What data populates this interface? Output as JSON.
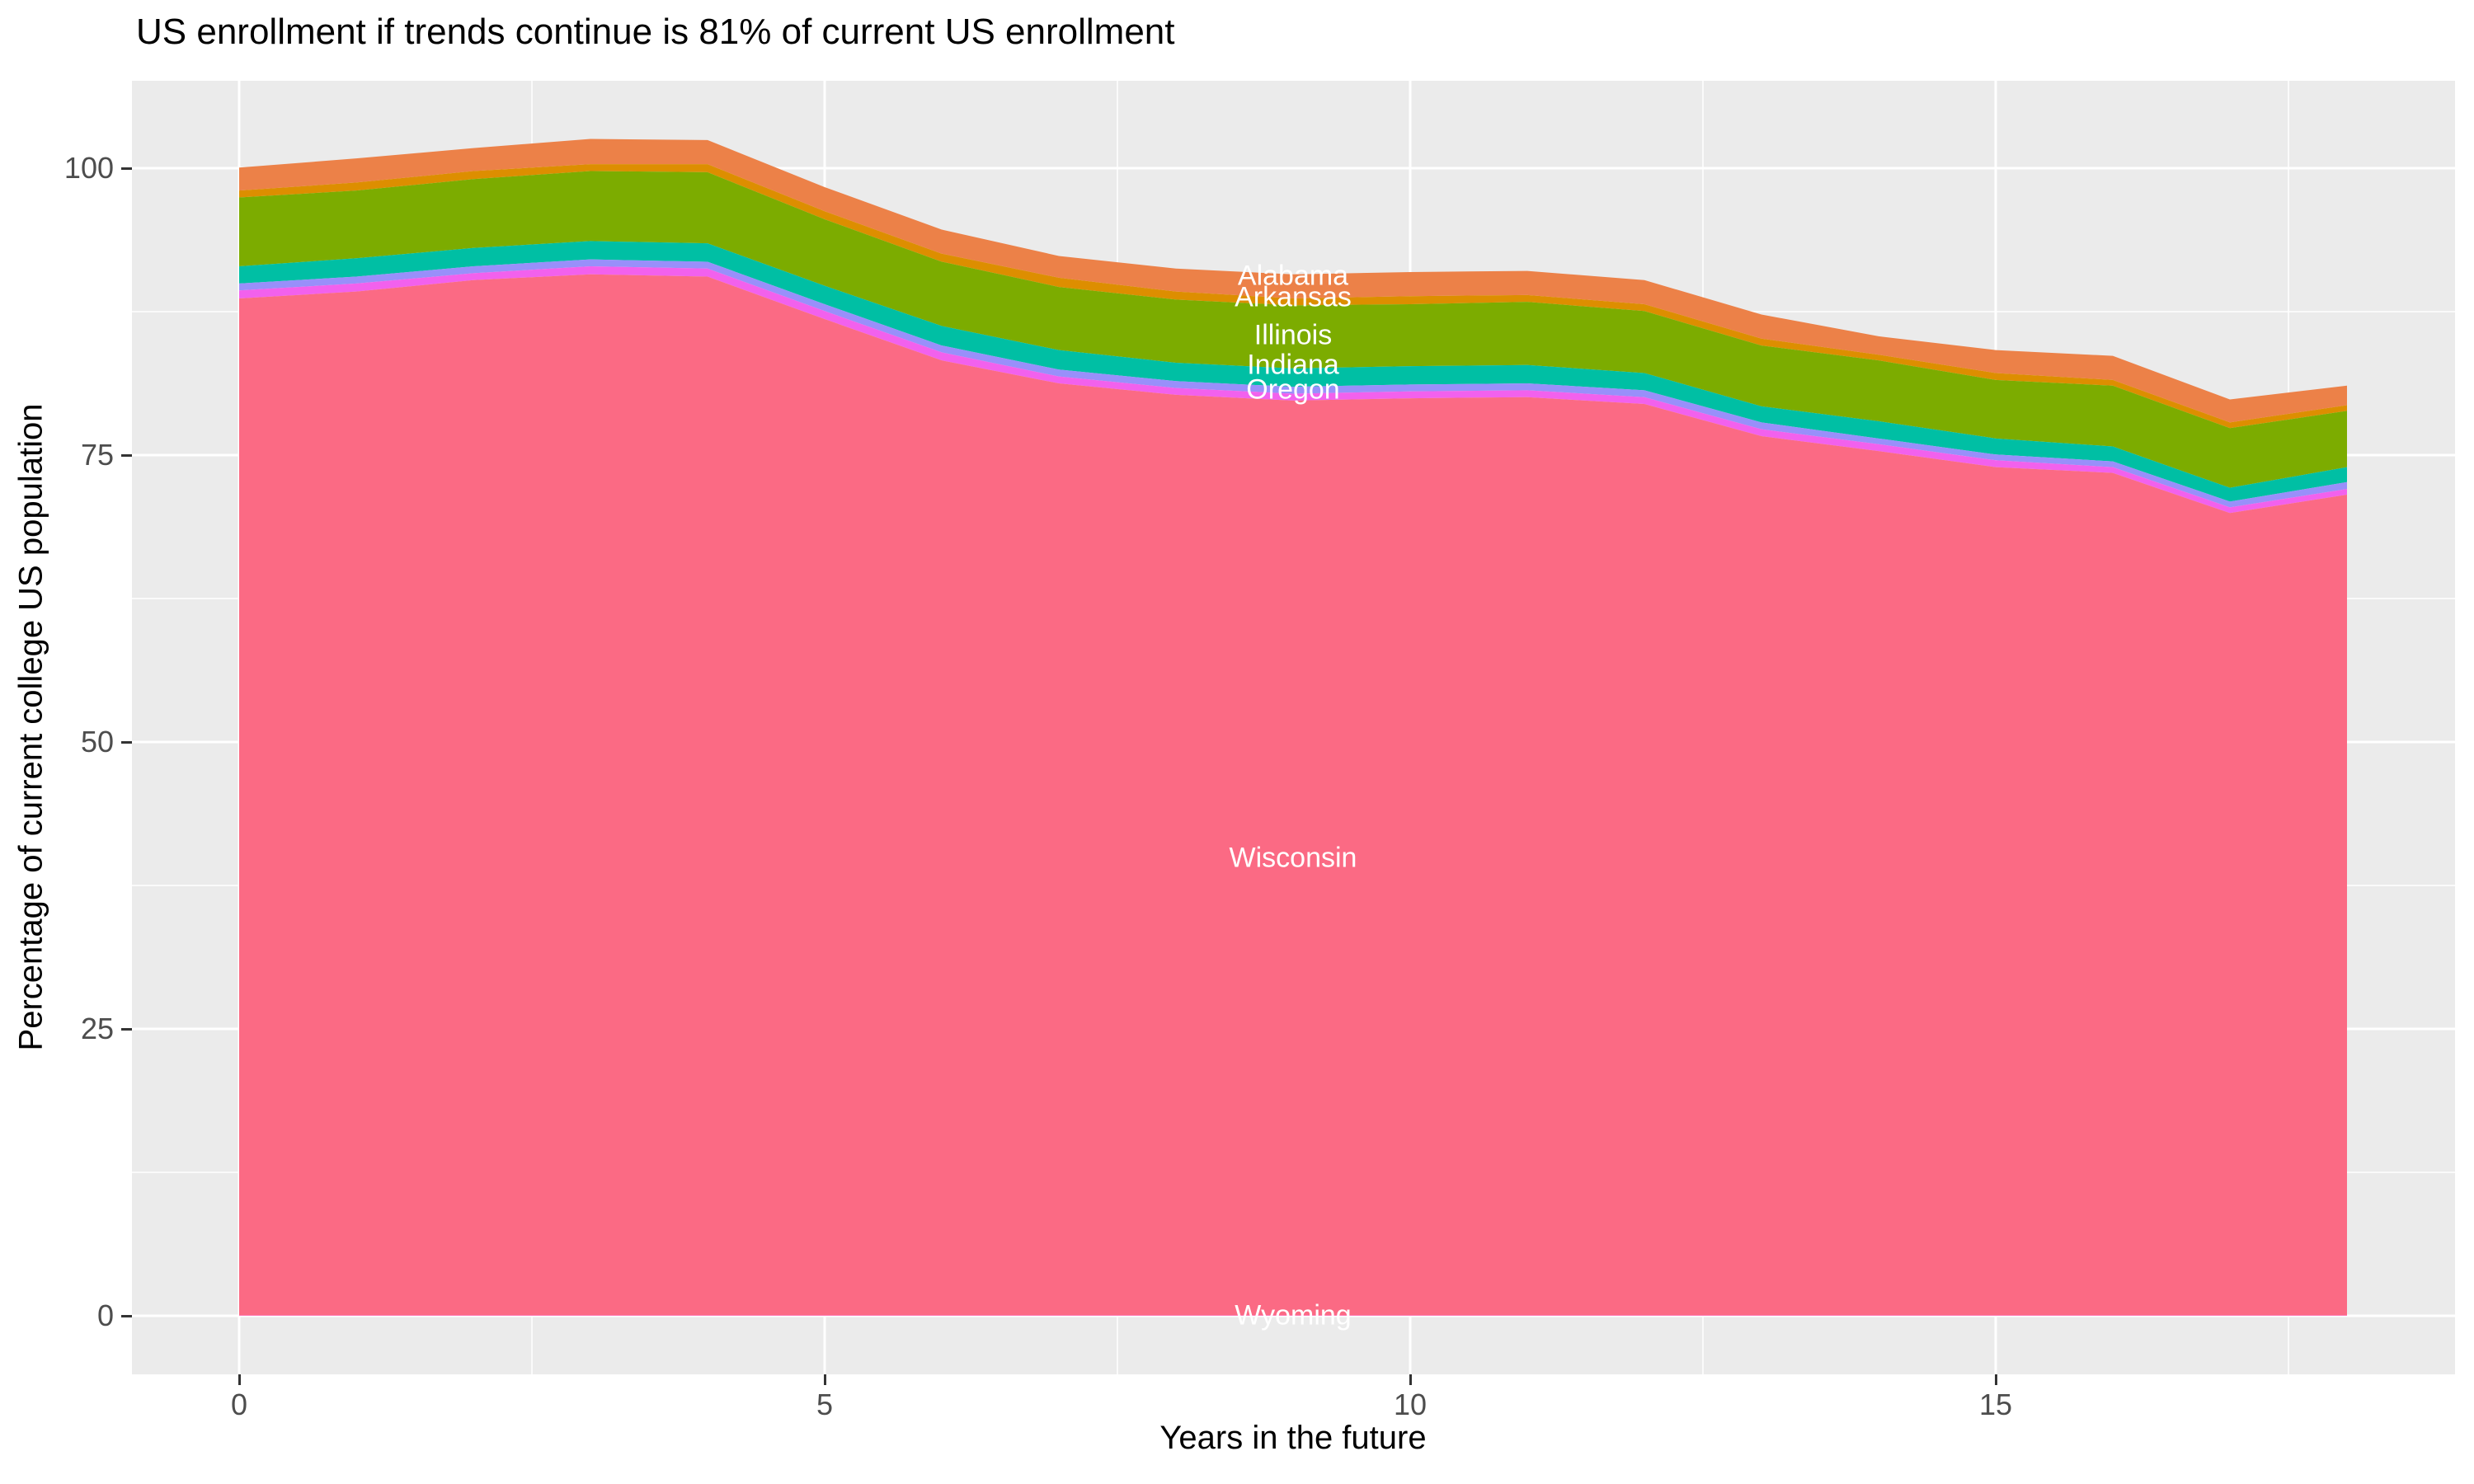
{
  "title": "US enrollment if trends continue is 81% of current US enrollment",
  "axes": {
    "x": {
      "title": "Years in the future",
      "tick_labels": [
        "0",
        "5",
        "10",
        "15"
      ],
      "tick_values": [
        0,
        5,
        10,
        15
      ],
      "minor_tick_values": [
        2.5,
        7.5,
        12.5,
        17.5
      ]
    },
    "y": {
      "title": "Percentage of current college US population",
      "tick_labels": [
        "100",
        "75",
        "50",
        "25",
        "0"
      ],
      "tick_values": [
        100,
        75,
        50,
        25,
        0
      ],
      "minor_tick_values": [
        87.5,
        62.5,
        37.5,
        12.5
      ]
    }
  },
  "style": {
    "panel_background": "#EBEBEB",
    "grid_color": "#FFFFFF",
    "tick_mark_color": "#333333",
    "tick_text_color": "#4D4D4D",
    "title_color": "#000000",
    "label_text_color": "#FFFFFF"
  },
  "chart_data": {
    "type": "area",
    "stacked": true,
    "legend_position": "none",
    "grid": "major and minor white gridlines on grey panel",
    "x": [
      0,
      1,
      2,
      3,
      4,
      5,
      6,
      7,
      8,
      9,
      10,
      11,
      12,
      13,
      14,
      15,
      16,
      17,
      18
    ],
    "xlim": [
      -0.9,
      18.9
    ],
    "ylim": [
      -5.1,
      107.6
    ],
    "xlabel": "Years in the future",
    "ylabel": "Percentage of current college US population",
    "title": "US enrollment if trends continue is 81% of current US enrollment",
    "series_order": "top of stack to bottom of stack",
    "series": [
      {
        "name": "Alabama",
        "color": "#EC8148",
        "values": [
          2.0,
          2.1,
          2.0,
          2.2,
          2.1,
          2.1,
          2.1,
          1.9,
          2.0,
          2.1,
          2.1,
          2.1,
          2.1,
          2.1,
          1.6,
          2.0,
          2.1,
          2.0,
          1.7
        ],
        "label": {
          "text": "Alabama",
          "x": 9,
          "y": 90.6
        }
      },
      {
        "name": "Arkansas",
        "color": "#DD8E00",
        "values": [
          0.6,
          0.7,
          0.7,
          0.6,
          0.7,
          0.7,
          0.7,
          0.8,
          0.7,
          0.6,
          0.7,
          0.6,
          0.6,
          0.6,
          0.5,
          0.6,
          0.5,
          0.5,
          0.5
        ],
        "label": {
          "text": "Arkansas",
          "x": 9,
          "y": 88.7
        }
      },
      {
        "name": "Illinois",
        "color": "#7CAC00",
        "values": [
          6.0,
          5.9,
          6.0,
          6.1,
          6.2,
          5.8,
          5.6,
          5.5,
          5.5,
          5.5,
          5.4,
          5.5,
          5.4,
          5.3,
          5.3,
          5.1,
          5.3,
          5.2,
          4.9
        ],
        "label": {
          "text": "Illinois",
          "x": 9,
          "y": 85.4
        }
      },
      {
        "name": "Indiana",
        "color": "#00BFA4",
        "values": [
          1.5,
          1.6,
          1.6,
          1.6,
          1.6,
          1.6,
          1.7,
          1.7,
          1.6,
          1.6,
          1.6,
          1.6,
          1.5,
          1.4,
          1.5,
          1.4,
          1.3,
          1.2,
          1.3
        ],
        "label": {
          "text": "Indiana",
          "x": 9,
          "y": 82.8
        }
      },
      {
        "name": "",
        "color": "#998FFA",
        "values": [
          0.6,
          0.6,
          0.6,
          0.6,
          0.6,
          0.6,
          0.6,
          0.6,
          0.6,
          0.6,
          0.6,
          0.6,
          0.6,
          0.6,
          0.5,
          0.5,
          0.5,
          0.5,
          0.6
        ],
        "label": null
      },
      {
        "name": "Oregon",
        "color": "#F261ED",
        "values": [
          0.7,
          0.7,
          0.6,
          0.7,
          0.7,
          0.7,
          0.7,
          0.6,
          0.6,
          0.6,
          0.6,
          0.6,
          0.6,
          0.6,
          0.6,
          0.6,
          0.5,
          0.5,
          0.5
        ],
        "label": {
          "text": "Oregon",
          "x": 9,
          "y": 80.7
        }
      },
      {
        "name": "Wisconsin",
        "color": "#FB6A84",
        "values": [
          88.6,
          89.2,
          90.2,
          90.7,
          90.5,
          86.8,
          83.2,
          81.2,
          80.2,
          79.7,
          79.9,
          80.0,
          79.4,
          76.6,
          75.3,
          73.9,
          73.4,
          69.9,
          71.5
        ],
        "label": {
          "text": "Wisconsin",
          "x": 9,
          "y": 39.9
        }
      },
      {
        "name": "Wyoming",
        "color": "#FF6BB5",
        "values": [
          0.05,
          0.05,
          0.05,
          0.05,
          0.05,
          0.05,
          0.05,
          0.05,
          0.05,
          0.05,
          0.05,
          0.05,
          0.05,
          0.05,
          0.05,
          0.05,
          0.05,
          0.05,
          0.05
        ],
        "label": {
          "text": "Wyoming",
          "x": 9,
          "y": 0
        }
      }
    ],
    "stack_total_at_x": [
      100.1,
      100.9,
      101.8,
      102.6,
      102.5,
      98.4,
      94.7,
      92.4,
      91.3,
      90.8,
      91.0,
      91.1,
      90.3,
      87.3,
      85.4,
      84.2,
      83.7,
      79.9,
      81.1
    ]
  }
}
